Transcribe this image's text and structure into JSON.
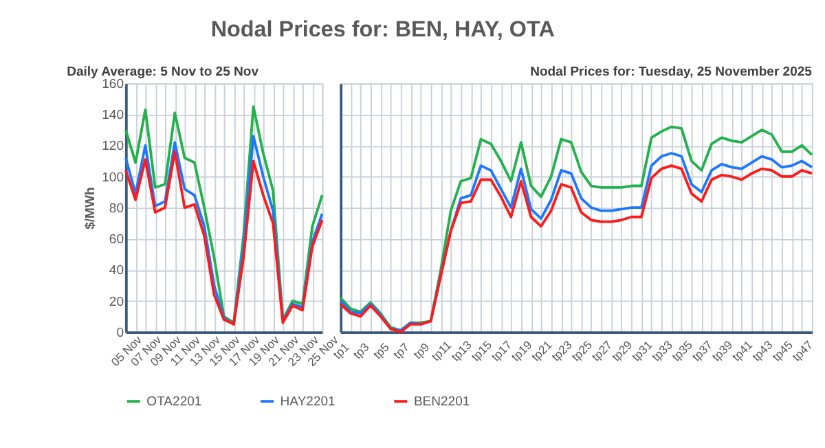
{
  "chart_data": [
    {
      "type": "line",
      "title": "Nodal Prices for: BEN, HAY, OTA",
      "subtitle": "Daily Average: 5 Nov to 25 Nov",
      "ylabel": "$/MWh",
      "categories": [
        "05 Nov",
        null,
        "07 Nov",
        null,
        "09 Nov",
        null,
        "11 Nov",
        null,
        "13 Nov",
        null,
        "15 Nov",
        null,
        "17 Nov",
        null,
        "19 Nov",
        null,
        "21 Nov",
        null,
        "23 Nov",
        null,
        "25 Nov"
      ],
      "series": [
        {
          "name": "OTA2201",
          "color": "#22b14c",
          "values": [
            130,
            109,
            143,
            93,
            95,
            141,
            112,
            109,
            80,
            48,
            10,
            6,
            62,
            145,
            115,
            91,
            8,
            20,
            18,
            68,
            88
          ]
        },
        {
          "name": "HAY2201",
          "color": "#1e78ff",
          "values": [
            112,
            89,
            120,
            81,
            84,
            122,
            92,
            88,
            68,
            30,
            9,
            5,
            55,
            126,
            100,
            78,
            7,
            18,
            16,
            58,
            76
          ]
        },
        {
          "name": "BEN2201",
          "color": "#ff1a1a",
          "values": [
            104,
            85,
            111,
            77,
            80,
            116,
            80,
            82,
            62,
            24,
            8,
            5,
            48,
            110,
            88,
            70,
            6,
            17,
            14,
            55,
            72
          ]
        }
      ],
      "ylim": [
        0,
        160
      ],
      "yticks": [
        0,
        20,
        40,
        60,
        80,
        100,
        120,
        140,
        160
      ],
      "grid": true,
      "legend": "bottom",
      "line_style": "solid"
    },
    {
      "type": "line",
      "subtitle": "Nodal Prices for: Tuesday, 25 November 2025",
      "categories": [
        "tp1",
        null,
        "tp3",
        null,
        "tp5",
        null,
        "tp7",
        null,
        "tp9",
        null,
        "tp11",
        null,
        "tp13",
        null,
        "tp15",
        null,
        "tp17",
        null,
        "tp19",
        null,
        "tp21",
        null,
        "tp23",
        null,
        "tp25",
        null,
        "tp27",
        null,
        "tp29",
        null,
        "tp31",
        null,
        "tp33",
        null,
        "tp35",
        null,
        "tp37",
        null,
        "tp39",
        null,
        "tp41",
        null,
        "tp43",
        null,
        "tp45",
        null,
        "tp47",
        null
      ],
      "series": [
        {
          "name": "OTA2201",
          "color": "#22b14c",
          "values": [
            22,
            15,
            13,
            19,
            12,
            3,
            1,
            6,
            6,
            7,
            40,
            78,
            97,
            99,
            124,
            121,
            110,
            97,
            122,
            94,
            87,
            100,
            124,
            122,
            103,
            94,
            93,
            93,
            93,
            94,
            94,
            125,
            129,
            132,
            131,
            110,
            104,
            121,
            125,
            123,
            122,
            126,
            130,
            127,
            116,
            116,
            120,
            114
          ]
        },
        {
          "name": "HAY2201",
          "color": "#1e78ff",
          "values": [
            20,
            13,
            12,
            18,
            11,
            2,
            1,
            6,
            5,
            7,
            37,
            65,
            86,
            88,
            107,
            104,
            92,
            80,
            105,
            79,
            73,
            85,
            104,
            102,
            86,
            80,
            78,
            78,
            79,
            80,
            80,
            107,
            113,
            115,
            113,
            95,
            90,
            104,
            108,
            106,
            105,
            109,
            113,
            111,
            106,
            107,
            110,
            106
          ]
        },
        {
          "name": "BEN2201",
          "color": "#ff1a1a",
          "values": [
            18,
            12,
            10,
            17,
            10,
            2,
            0,
            5,
            5,
            7,
            36,
            65,
            83,
            84,
            98,
            98,
            87,
            74,
            97,
            74,
            68,
            78,
            95,
            93,
            77,
            72,
            71,
            71,
            72,
            74,
            74,
            99,
            105,
            107,
            105,
            89,
            84,
            98,
            101,
            100,
            98,
            102,
            105,
            104,
            100,
            100,
            104,
            102
          ]
        }
      ],
      "ylim": [
        0,
        160
      ],
      "yticks": [
        0,
        20,
        40,
        60,
        80,
        100,
        120,
        140,
        160
      ],
      "grid": true,
      "legend": "bottom",
      "line_style": "solid",
      "tick_labels": "x"
    }
  ]
}
